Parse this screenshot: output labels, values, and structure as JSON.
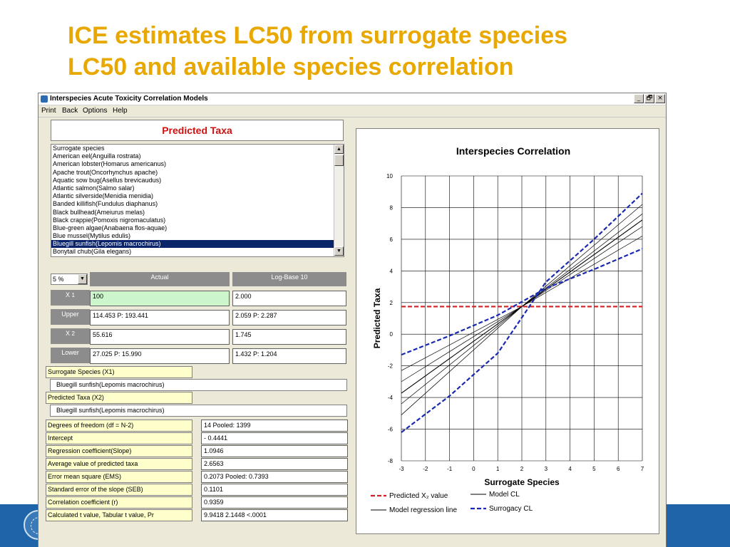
{
  "slide": {
    "title_line1": "ICE estimates LC50 from surrogate species",
    "title_line2": "LC50 and available species correlation"
  },
  "window": {
    "title": "Interspecies Acute Toxicity Correlation Models",
    "controls": [
      "_",
      "🗗",
      "×"
    ]
  },
  "menu": [
    "Print",
    "Back",
    "Options",
    "Help"
  ],
  "predicted_header": "Predicted Taxa",
  "species_list": {
    "items": [
      "Surrogate species",
      "American eel(Anguilla rostrata)",
      "American lobster(Homarus americanus)",
      "Apache trout(Oncorhynchus apache)",
      "Aquatic sow bug(Asellus brevicaudus)",
      "Atlantic salmon(Salmo salar)",
      "Atlantic silverside(Menidia menidia)",
      "Banded killifish(Fundulus diaphanus)",
      "Black bullhead(Ameiurus melas)",
      "Black crappie(Pomoxis nigromaculatus)",
      "Blue-green algae(Anabaena flos-aquae)",
      "Blue mussel(Mytilus edulis)",
      "Bluegill sunfish(Lepomis macrochirus)",
      "Bonytail chub(Gila elegans)"
    ],
    "selected_index": 12
  },
  "conf": {
    "value": "5 %"
  },
  "table": {
    "col_actual": "Actual",
    "col_log": "Log-Base 10",
    "rows": [
      {
        "label": "X",
        "sub": "1",
        "actual": "100",
        "log": "2.000"
      },
      {
        "label": "Upper",
        "sub": "",
        "actual": "114.453   P: 193.441",
        "log": "2.059   P: 2.287"
      },
      {
        "label": "X",
        "sub": "2",
        "actual": "55.616",
        "log": "1.745"
      },
      {
        "label": "Lower",
        "sub": "",
        "actual": "27.025   P: 15.990",
        "log": "1.432   P: 1.204"
      }
    ]
  },
  "species_info": {
    "surrogate_label": "Surrogate Species (X1)",
    "surrogate_value": "Bluegill sunfish(Lepomis macrochirus)",
    "predicted_label": "Predicted Taxa (X2)",
    "predicted_value": "Bluegill sunfish(Lepomis macrochirus)"
  },
  "stats": [
    {
      "label": "Degrees of freedom (df = N-2)",
      "value": "       14    Pooled: 1399"
    },
    {
      "label": "Intercept",
      "value": "- 0.4441"
    },
    {
      "label": "Regression coefficient(Slope)",
      "value": "1.0946"
    },
    {
      "label": "Average value of predicted taxa",
      "value": "2.6563"
    },
    {
      "label": "Error mean square (EMS)",
      "value": "0.2073    Pooled:  0.7393"
    },
    {
      "label": "Standard error of the slope (SEB)",
      "value": "0.1101"
    },
    {
      "label": "Correlation coefficient (r)",
      "value": "0.9359"
    },
    {
      "label": "Calculated t value, Tabular t value, Pr",
      "value": "9.9418    2.1448       <.0001"
    }
  ],
  "colors": {
    "title": "#e8a800",
    "footer": "#1f63a8",
    "predicted_line": "#d42020",
    "surrogacy_cl": "#1a2ab0",
    "header_red": "#d01010"
  },
  "chart_data": {
    "type": "line",
    "title": "Interspecies Correlation",
    "xlabel": "Surrogate Species",
    "ylabel": "Predicted Taxa",
    "xlim": [
      -3,
      7
    ],
    "ylim": [
      -8,
      10
    ],
    "xticks": [
      -3,
      -2,
      -1,
      0,
      1,
      2,
      3,
      4,
      5,
      6,
      7
    ],
    "yticks": [
      -8,
      -6,
      -4,
      -2,
      0,
      2,
      4,
      6,
      8,
      10
    ],
    "grid": true,
    "series": [
      {
        "name": "Predicted X₂ value",
        "style": "dashed-red",
        "x": [
          -3,
          7
        ],
        "y": [
          1.745,
          1.745
        ]
      },
      {
        "name": "Model regression line",
        "style": "solid-black",
        "x": [
          -3,
          7
        ],
        "y": [
          -3.728,
          7.218
        ]
      },
      {
        "name": "Model CL",
        "style": "thin-black",
        "x": [
          -3,
          2,
          7
        ],
        "y": [
          -2.3,
          1.745,
          6.2
        ]
      },
      {
        "name": "",
        "style": "thin-black",
        "x": [
          -3,
          2,
          7
        ],
        "y": [
          -5.1,
          1.745,
          8.2
        ]
      },
      {
        "name": "",
        "style": "thin-black",
        "x": [
          -3,
          2,
          7
        ],
        "y": [
          -3.0,
          1.745,
          6.8
        ]
      },
      {
        "name": "",
        "style": "thin-black",
        "x": [
          -3,
          2,
          7
        ],
        "y": [
          -4.4,
          1.745,
          7.6
        ]
      },
      {
        "name": "Surrogacy CL",
        "style": "dashed-blue",
        "x": [
          -3,
          -1,
          1,
          3,
          5,
          7
        ],
        "y": [
          -1.3,
          -0.1,
          1.2,
          2.9,
          4.1,
          5.4
        ]
      },
      {
        "name": "",
        "style": "dashed-blue",
        "x": [
          -3,
          -1,
          1,
          3,
          5,
          7
        ],
        "y": [
          -6.2,
          -3.9,
          -1.2,
          3.3,
          6.0,
          8.9
        ]
      }
    ],
    "legend": {
      "placement": "bottom",
      "entries": [
        {
          "label": "Predicted X₂ value",
          "style": "dashed-red"
        },
        {
          "label": "Model CL",
          "style": "solid-black"
        },
        {
          "label": "Model regression line",
          "style": "solid-black"
        },
        {
          "label": "Surrogacy CL",
          "style": "dashed-blue"
        }
      ]
    }
  }
}
